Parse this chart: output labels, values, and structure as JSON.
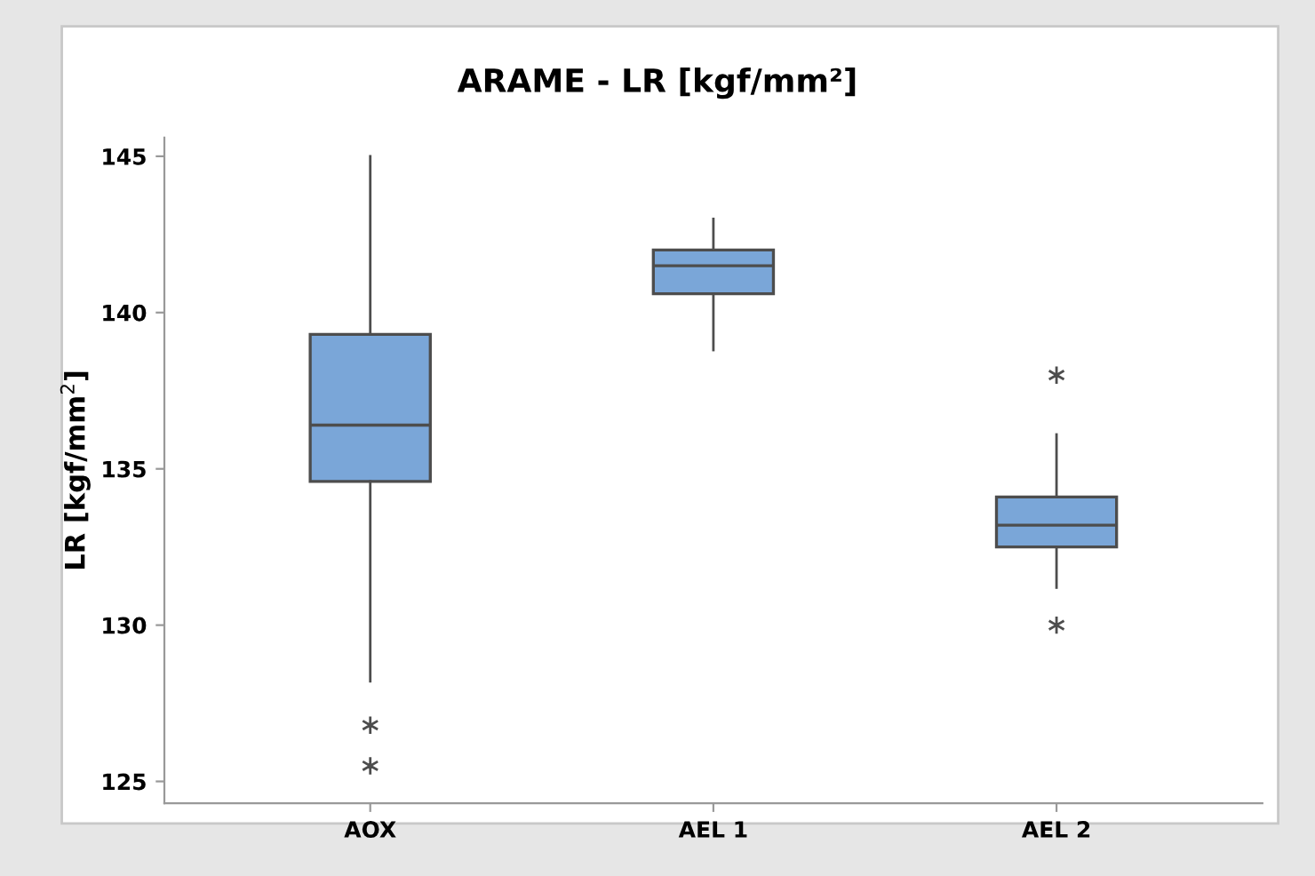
{
  "chart_data": {
    "type": "box",
    "title": "ARAME - LR [kgf/mm²]",
    "ylabel": "LR [kgf/mm$^{2}$]",
    "categories": [
      "AOX",
      "AEL 1",
      "AEL 2"
    ],
    "color": "#7aa6d8",
    "boxes": [
      {
        "low": 128.2,
        "q1": 134.6,
        "median": 136.4,
        "q3": 139.3,
        "high": 145.0,
        "outliers": [
          126.8,
          125.5
        ]
      },
      {
        "low": 138.8,
        "q1": 140.6,
        "median": 141.5,
        "q3": 142.0,
        "high": 143.0
      },
      {
        "low": 131.2,
        "q1": 132.5,
        "median": 133.2,
        "q3": 134.1,
        "high": 136.1,
        "outliers": [
          138.0,
          130.0
        ]
      }
    ],
    "ylim": [
      124.3,
      145.6
    ],
    "yticks": [
      125,
      130,
      135,
      140,
      145
    ],
    "grid": false
  }
}
